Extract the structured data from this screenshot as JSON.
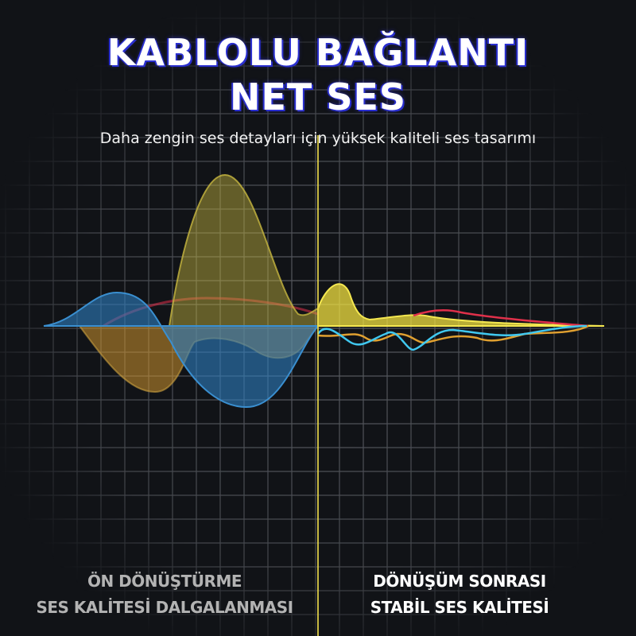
{
  "header": {
    "title_line1": "KABLOLU BAĞLANTI",
    "title_line2": "NET SES",
    "subtitle": "Daha zengin ses detayları için yüksek kaliteli ses tasarımı"
  },
  "captions": {
    "before": {
      "line1": "ÖN DÖNÜŞTÜRME",
      "line2": "SES KALİTESİ DALGALANMASI"
    },
    "after": {
      "line1": "DÖNÜŞÜM SONRASI",
      "line2": "STABİL SES KALİTESİ"
    }
  },
  "colors": {
    "background": "#111317",
    "grid": "#5a5d63",
    "divider": "#e6d64a",
    "wave_blue": "#3a8fd0",
    "wave_orange": "#e0a030",
    "wave_yellow": "#f0e040",
    "wave_red": "#e0304a",
    "wave_cyan": "#40c8f0"
  }
}
